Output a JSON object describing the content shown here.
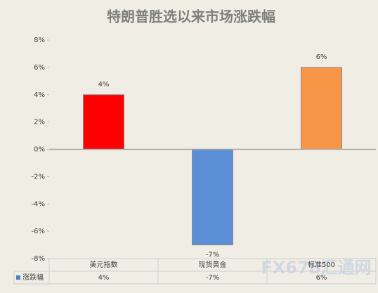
{
  "chart_data": {
    "type": "bar",
    "title": "特朗普胜选以来市场涨跌幅",
    "categories": [
      "美元指数",
      "现货黄金",
      "标准500"
    ],
    "series": [
      {
        "name": "涨跌幅",
        "color": "#4f81bd",
        "values": [
          4,
          -7,
          6
        ],
        "value_labels": [
          "4%",
          "-7%",
          "6%"
        ],
        "bar_colors": [
          "#ff0000",
          "#5b8fd6",
          "#f79646"
        ]
      }
    ],
    "ylim": [
      -8,
      8
    ],
    "yticks": [
      {
        "value": -8,
        "label": "-8%"
      },
      {
        "value": -6,
        "label": "-6%"
      },
      {
        "value": -4,
        "label": "-4%"
      },
      {
        "value": -2,
        "label": "-2%"
      },
      {
        "value": 0,
        "label": "0%"
      },
      {
        "value": 2,
        "label": "2%"
      },
      {
        "value": 4,
        "label": "4%"
      },
      {
        "value": 6,
        "label": "6%"
      },
      {
        "value": 8,
        "label": "8%"
      }
    ],
    "data_table": true,
    "watermark": "FX678汇通网"
  }
}
